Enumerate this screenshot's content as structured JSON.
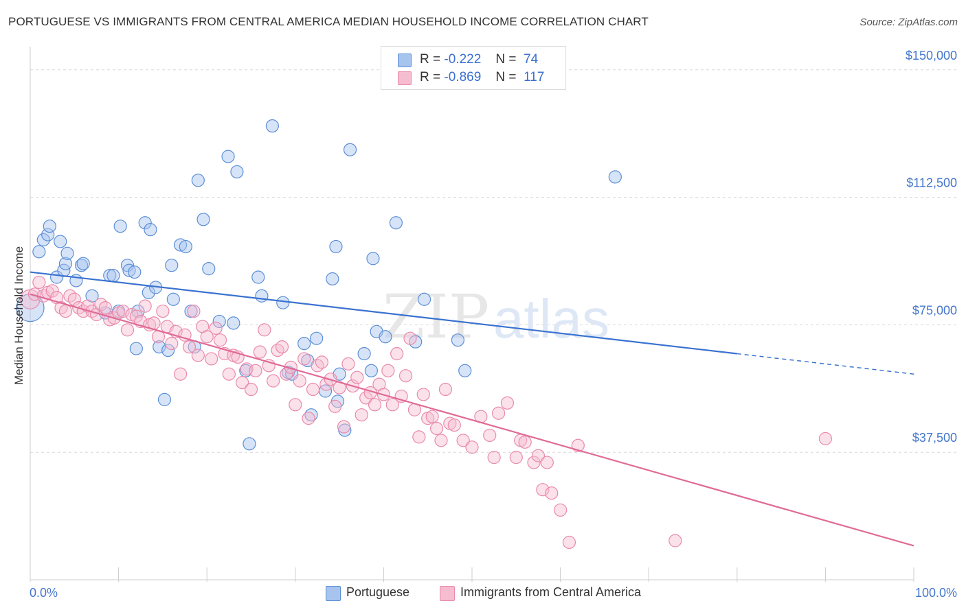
{
  "header": {
    "title": "PORTUGUESE VS IMMIGRANTS FROM CENTRAL AMERICA MEDIAN HOUSEHOLD INCOME CORRELATION CHART",
    "source": "Source: ZipAtlas.com"
  },
  "legend": {
    "r_label": "R =",
    "n_label": "N =",
    "rows": [
      {
        "r": "-0.222",
        "n": "74"
      },
      {
        "r": "-0.869",
        "n": "117"
      }
    ]
  },
  "watermark": {
    "zip": "ZIP",
    "atlas": "atlas"
  },
  "colors": {
    "blue_fill": "#a7c4ef",
    "blue_stroke": "#5b8ed6",
    "blue_line": "#3a72cf",
    "pink_fill": "#f6bcd0",
    "pink_stroke": "#e98aab",
    "pink_line": "#e06a95",
    "grid": "#d8d8d8",
    "tick_label": "#4477cc"
  },
  "chart_data": {
    "type": "scatter",
    "title": "PORTUGUESE VS IMMIGRANTS FROM CENTRAL AMERICA MEDIAN HOUSEHOLD INCOME CORRELATION CHART",
    "xlabel": "",
    "ylabel": "Median Household Income",
    "xlim": [
      0,
      100
    ],
    "ylim": [
      0,
      155000
    ],
    "x_tick_labels": [
      "0.0%",
      "100.0%"
    ],
    "y_ticks": [
      {
        "value": 37500,
        "label": "$37,500"
      },
      {
        "value": 75000,
        "label": "$75,000"
      },
      {
        "value": 112500,
        "label": "$112,500"
      },
      {
        "value": 150000,
        "label": "$150,000"
      }
    ],
    "series": [
      {
        "name": "Portuguese",
        "color": "blue",
        "trend": {
          "x0": 0,
          "y0": 90500,
          "x1": 80,
          "y1": 66500,
          "dash_to_x": 100,
          "dash_to_y": 60500
        },
        "points": [
          [
            0,
            80000
          ],
          [
            1,
            96500
          ],
          [
            1.5,
            100000
          ],
          [
            2,
            101500
          ],
          [
            2.2,
            104000
          ],
          [
            3,
            89000
          ],
          [
            3.4,
            99500
          ],
          [
            3.8,
            91000
          ],
          [
            4,
            93000
          ],
          [
            4.2,
            96000
          ],
          [
            5.2,
            88000
          ],
          [
            5.8,
            92500
          ],
          [
            6,
            93000
          ],
          [
            7,
            83500
          ],
          [
            8.5,
            78500
          ],
          [
            9,
            89500
          ],
          [
            9.4,
            89500
          ],
          [
            10,
            79000
          ],
          [
            10.2,
            104000
          ],
          [
            11,
            92500
          ],
          [
            11.2,
            91000
          ],
          [
            11.8,
            90500
          ],
          [
            12,
            68000
          ],
          [
            12.2,
            79000
          ],
          [
            13,
            105000
          ],
          [
            13.4,
            84500
          ],
          [
            13.6,
            103000
          ],
          [
            14.2,
            86000
          ],
          [
            14.6,
            68500
          ],
          [
            15.2,
            53000
          ],
          [
            15.6,
            67500
          ],
          [
            16,
            92500
          ],
          [
            16.2,
            82500
          ],
          [
            17,
            98500
          ],
          [
            17.6,
            98000
          ],
          [
            18.2,
            79000
          ],
          [
            18.6,
            68500
          ],
          [
            19,
            117500
          ],
          [
            19.6,
            106000
          ],
          [
            20.2,
            91500
          ],
          [
            21.4,
            76000
          ],
          [
            22.4,
            124500
          ],
          [
            23,
            75500
          ],
          [
            23.4,
            120000
          ],
          [
            24.4,
            61500
          ],
          [
            24.8,
            40000
          ],
          [
            25.8,
            89000
          ],
          [
            26.2,
            83500
          ],
          [
            27.4,
            133500
          ],
          [
            28.6,
            81500
          ],
          [
            29.2,
            61000
          ],
          [
            29.6,
            60500
          ],
          [
            31,
            69500
          ],
          [
            31.4,
            64500
          ],
          [
            31.8,
            48500
          ],
          [
            32.4,
            71000
          ],
          [
            33.4,
            55500
          ],
          [
            34.2,
            88500
          ],
          [
            34.6,
            98000
          ],
          [
            34.8,
            52500
          ],
          [
            35,
            60500
          ],
          [
            35.6,
            44000
          ],
          [
            36.2,
            126500
          ],
          [
            37.8,
            66500
          ],
          [
            38.6,
            61500
          ],
          [
            38.8,
            94500
          ],
          [
            39.2,
            73000
          ],
          [
            40.2,
            71500
          ],
          [
            41.4,
            105000
          ],
          [
            43.6,
            70000
          ],
          [
            44.6,
            82500
          ],
          [
            48.4,
            70500
          ],
          [
            49.2,
            61500
          ],
          [
            66.2,
            118500
          ]
        ]
      },
      {
        "name": "Immigrants from Central America",
        "color": "pink",
        "trend": {
          "x0": 0,
          "y0": 84000,
          "x1": 100,
          "y1": 10000
        },
        "points": [
          [
            0,
            82500
          ],
          [
            0.5,
            84000
          ],
          [
            1,
            87500
          ],
          [
            1.5,
            83500
          ],
          [
            2,
            84500
          ],
          [
            2.5,
            85000
          ],
          [
            3,
            83000
          ],
          [
            3.5,
            80000
          ],
          [
            4,
            79000
          ],
          [
            4.5,
            83500
          ],
          [
            5,
            82500
          ],
          [
            5.5,
            80000
          ],
          [
            6,
            79000
          ],
          [
            6.5,
            80500
          ],
          [
            7,
            79000
          ],
          [
            7.5,
            78000
          ],
          [
            8,
            81000
          ],
          [
            8.5,
            80000
          ],
          [
            9,
            76500
          ],
          [
            9.5,
            77000
          ],
          [
            10,
            78500
          ],
          [
            10.5,
            79000
          ],
          [
            11,
            73500
          ],
          [
            11.5,
            78000
          ],
          [
            12,
            77500
          ],
          [
            12.5,
            76000
          ],
          [
            13,
            80500
          ],
          [
            13.5,
            75000
          ],
          [
            14,
            75500
          ],
          [
            14.5,
            71500
          ],
          [
            15,
            79000
          ],
          [
            15.5,
            74500
          ],
          [
            16,
            69500
          ],
          [
            16.5,
            73000
          ],
          [
            17,
            60500
          ],
          [
            17.5,
            72000
          ],
          [
            18,
            68500
          ],
          [
            18.5,
            79000
          ],
          [
            19,
            66000
          ],
          [
            19.5,
            74500
          ],
          [
            20,
            71500
          ],
          [
            20.5,
            65000
          ],
          [
            21,
            74000
          ],
          [
            21.5,
            70500
          ],
          [
            22,
            66500
          ],
          [
            22.5,
            60500
          ],
          [
            23,
            66000
          ],
          [
            23.5,
            65500
          ],
          [
            24,
            58000
          ],
          [
            24.5,
            62000
          ],
          [
            25,
            56000
          ],
          [
            25.5,
            61500
          ],
          [
            26,
            67000
          ],
          [
            26.5,
            73500
          ],
          [
            27,
            63000
          ],
          [
            27.5,
            58500
          ],
          [
            28,
            67500
          ],
          [
            28.5,
            68500
          ],
          [
            29,
            60500
          ],
          [
            29.5,
            62500
          ],
          [
            30,
            51500
          ],
          [
            30.5,
            58500
          ],
          [
            31,
            65000
          ],
          [
            31.5,
            47500
          ],
          [
            32,
            56000
          ],
          [
            32.5,
            63000
          ],
          [
            33,
            64000
          ],
          [
            33.5,
            57500
          ],
          [
            34,
            59000
          ],
          [
            34.5,
            51000
          ],
          [
            35,
            56500
          ],
          [
            35.5,
            45000
          ],
          [
            36,
            63500
          ],
          [
            36.5,
            57000
          ],
          [
            37,
            59500
          ],
          [
            37.5,
            48500
          ],
          [
            38,
            53500
          ],
          [
            38.5,
            55000
          ],
          [
            39,
            51500
          ],
          [
            39.5,
            57500
          ],
          [
            40,
            54500
          ],
          [
            40.5,
            61500
          ],
          [
            41,
            51500
          ],
          [
            41.5,
            66500
          ],
          [
            42,
            54000
          ],
          [
            42.5,
            60000
          ],
          [
            43,
            71000
          ],
          [
            43.5,
            50000
          ],
          [
            44,
            42000
          ],
          [
            44.5,
            54500
          ],
          [
            45,
            47500
          ],
          [
            45.5,
            48000
          ],
          [
            46,
            44500
          ],
          [
            46.5,
            41000
          ],
          [
            47,
            56000
          ],
          [
            47.5,
            46000
          ],
          [
            48,
            45500
          ],
          [
            49,
            41000
          ],
          [
            50,
            39000
          ],
          [
            51,
            48000
          ],
          [
            52,
            42500
          ],
          [
            52.5,
            36000
          ],
          [
            53,
            49000
          ],
          [
            54,
            52000
          ],
          [
            55,
            36000
          ],
          [
            55.5,
            41000
          ],
          [
            56,
            40500
          ],
          [
            57,
            34500
          ],
          [
            57.5,
            36500
          ],
          [
            58,
            26500
          ],
          [
            58.5,
            34500
          ],
          [
            59,
            25500
          ],
          [
            60,
            20500
          ],
          [
            61,
            11000
          ],
          [
            62,
            39500
          ],
          [
            73,
            11500
          ],
          [
            90,
            41500
          ]
        ]
      }
    ]
  },
  "bottom_legend": {
    "items": [
      {
        "label": "Portuguese"
      },
      {
        "label": "Immigrants from Central America"
      }
    ]
  }
}
